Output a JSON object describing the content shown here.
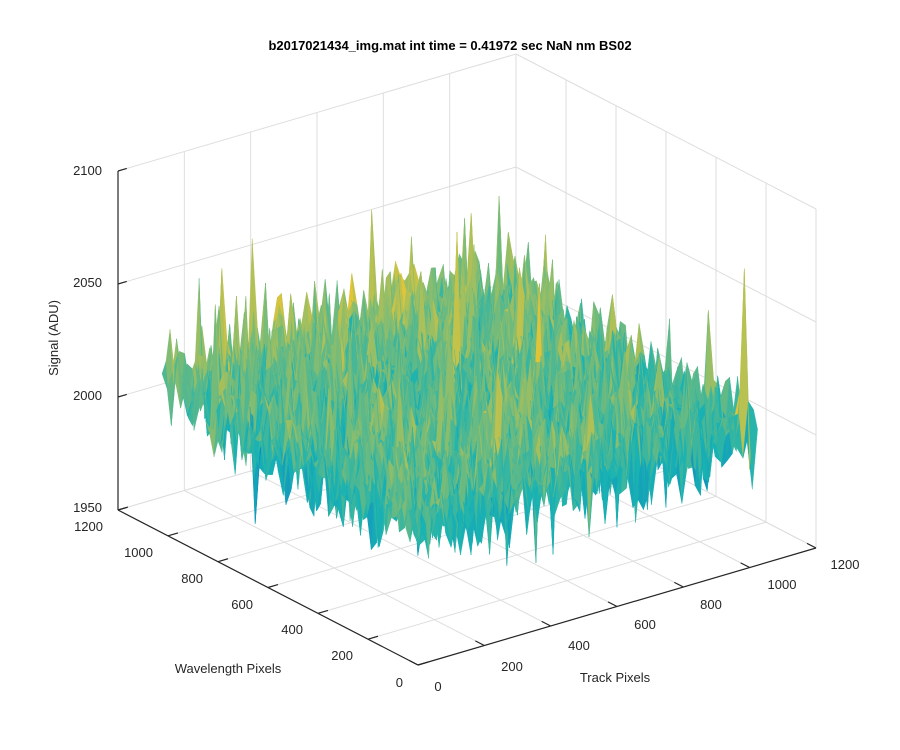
{
  "chart_data": {
    "type": "surface",
    "title": "b2017021434_img.mat int time = 0.41972 sec  NaN nm BS02",
    "xlabel": "Track Pixels",
    "ylabel": "Wavelength Pixels",
    "zlabel": "Signal (ADU)",
    "xlim": [
      0,
      1200
    ],
    "ylim": [
      0,
      1200
    ],
    "zlim": [
      1950,
      2100
    ],
    "x_ticks": [
      0,
      200,
      400,
      600,
      800,
      1000,
      1200
    ],
    "y_ticks": [
      0,
      200,
      400,
      600,
      800,
      1000,
      1200
    ],
    "z_ticks": [
      1950,
      2000,
      2050,
      2100
    ],
    "x_tick_labels": [
      "0",
      "200",
      "400",
      "600",
      "800",
      "1000",
      "1200"
    ],
    "y_tick_labels": [
      "0",
      "200",
      "400",
      "600",
      "800",
      "1000",
      "1200"
    ],
    "z_tick_labels": [
      "1950",
      "2000",
      "2050",
      "2100"
    ],
    "surface_extent": {
      "x": [
        0,
        1024
      ],
      "y": [
        0,
        1024
      ]
    },
    "signal_mean": 2012,
    "signal_typical_min": 1985,
    "signal_peak_max": 2100,
    "colormap": "parula",
    "colors": {
      "low": "#0a72c8",
      "mid": "#19b3b3",
      "high": "#e8c534"
    },
    "grid": true,
    "box": false,
    "view": "3d"
  }
}
